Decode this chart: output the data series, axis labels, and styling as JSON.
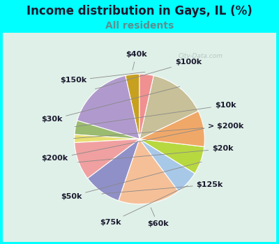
{
  "title": "Income distribution in Gays, IL (%)",
  "subtitle": "All residents",
  "title_color": "#1a1a2e",
  "subtitle_color": "#5a9090",
  "background_color": "#00FFFF",
  "chart_bg_color": "#dff0e8",
  "watermark": "City-Data.com",
  "labels": [
    "$40k",
    "$100k",
    "$10k",
    "> $200k",
    "$20k",
    "$125k",
    "$60k",
    "$75k",
    "$50k",
    "$200k",
    "$30k",
    "$150k"
  ],
  "values": [
    3.5,
    17.0,
    3.5,
    2.0,
    9.5,
    9.5,
    15.5,
    6.0,
    7.0,
    9.0,
    14.5,
    3.5
  ],
  "colors": [
    "#C8A020",
    "#B09ACD",
    "#9BBB70",
    "#E8E070",
    "#F0A0A0",
    "#9090C8",
    "#F5C098",
    "#A8C8E8",
    "#B8D840",
    "#F0A868",
    "#C8C098",
    "#F09090"
  ],
  "startangle": 90,
  "label_fontsize": 8,
  "title_fontsize": 12,
  "subtitle_fontsize": 10,
  "label_color": "#1a1a2e"
}
